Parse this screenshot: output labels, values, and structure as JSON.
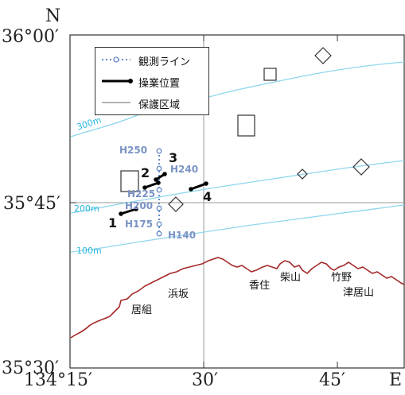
{
  "axes": {
    "north": "N",
    "east": "E",
    "lat_top": "36°00′",
    "lat_mid": "35°45′",
    "lat_bottom": "35°30′",
    "lon_left": "134°15′",
    "lon_mid": "30′",
    "lon_right": "45′"
  },
  "legend": {
    "survey_line": "観測ライン",
    "operation_position": "操業位置",
    "protected_area": "保護区域"
  },
  "depth_contours": {
    "d300": "300m",
    "d200": "200m",
    "d100": "100m"
  },
  "stations": {
    "h250": "H250",
    "h240": "H240",
    "h225": "H225",
    "h200": "H200",
    "h175": "H175",
    "h140": "H140"
  },
  "operation_numbers": {
    "n1": "1",
    "n2": "2",
    "n3": "3",
    "n4": "4"
  },
  "places": {
    "igumi": "居組",
    "hamasaka": "浜坂",
    "kasumi": "香住",
    "shibayama": "柴山",
    "takeno": "竹野",
    "tsuiyama": "津居山"
  },
  "colors": {
    "coastline": "#a52a2a",
    "contour": "#7fd6ee",
    "survey_line": "#6a8cc7",
    "operation": "#000000",
    "grid": "#999999"
  }
}
